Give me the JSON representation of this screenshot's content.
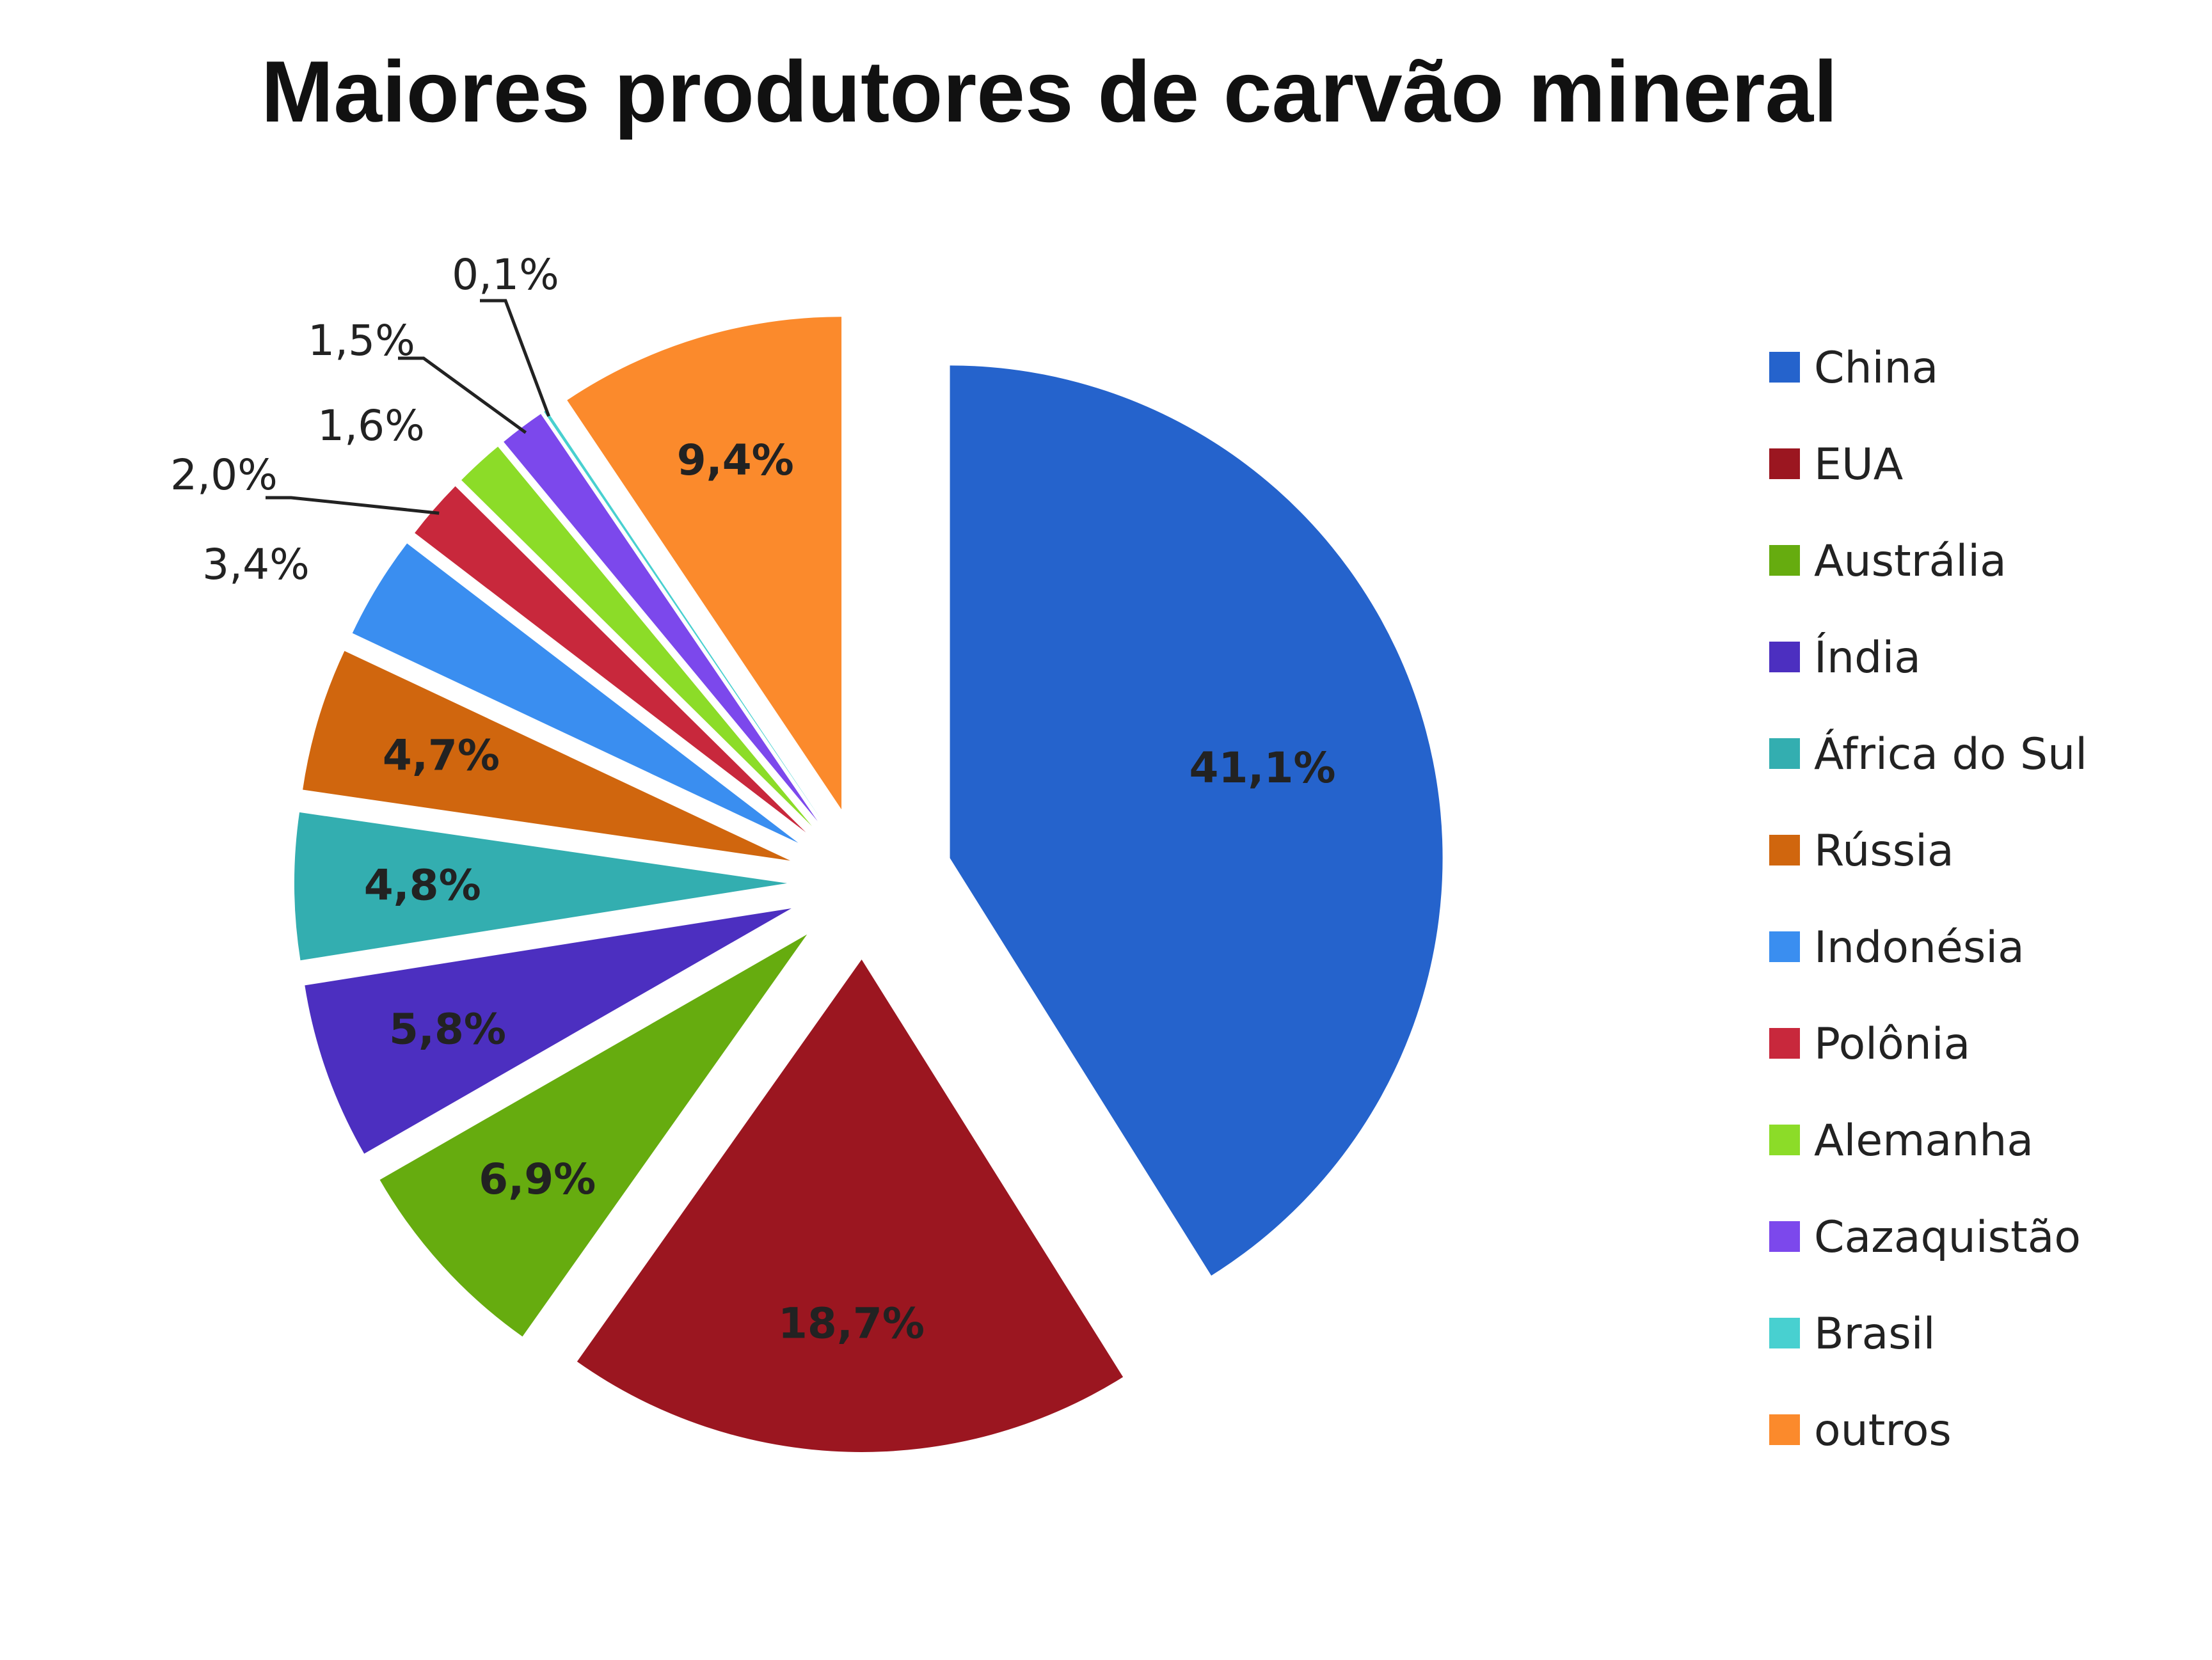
{
  "chart_data": {
    "type": "pie",
    "title": "Maiores produtores de carvão mineral",
    "categories": [
      "China",
      "EUA",
      "Austrália",
      "Índia",
      "África do Sul",
      "Rússia",
      "Indonésia",
      "Polônia",
      "Alemanha",
      "Cazaquistão",
      "Brasil",
      "outros"
    ],
    "values": [
      41.1,
      18.7,
      6.9,
      5.8,
      4.8,
      4.7,
      3.4,
      2.0,
      1.6,
      1.5,
      0.1,
      9.4
    ],
    "value_labels": [
      "41,1%",
      "18,7%",
      "6,9%",
      "5,8%",
      "4,8%",
      "4,7%",
      "3,4%",
      "2,0%",
      "1,6%",
      "1,5%",
      "0,1%",
      "9,4%"
    ],
    "colors": [
      "#2563cc",
      "#9b1620",
      "#66ac0f",
      "#4c2fc0",
      "#33aeb0",
      "#d0660e",
      "#3a8ef0",
      "#c8283c",
      "#8cdc28",
      "#7c48ec",
      "#48d0d0",
      "#fb8a2c"
    ],
    "start_angle_deg": 0,
    "direction": "clockwise",
    "exploded": true,
    "legend_position": "right"
  }
}
